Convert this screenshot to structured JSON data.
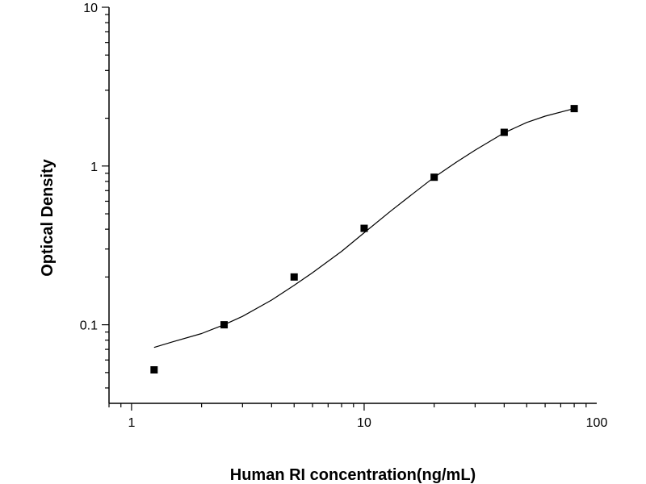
{
  "chart_data": {
    "type": "scatter",
    "title": "",
    "xlabel": "Human RI concentration(ng/mL)",
    "ylabel": "Optical Density",
    "x_scale": "log",
    "y_scale": "log",
    "xlim": [
      0.8,
      100
    ],
    "ylim": [
      0.032,
      10
    ],
    "grid": false,
    "legend": "none",
    "x_ticks": [
      {
        "value": 1,
        "label": "1"
      },
      {
        "value": 10,
        "label": "10"
      },
      {
        "value": 100,
        "label": "100"
      }
    ],
    "y_ticks": [
      {
        "value": 0.1,
        "label": "0.1"
      },
      {
        "value": 1,
        "label": "1"
      },
      {
        "value": 10,
        "label": "10"
      }
    ],
    "series": [
      {
        "marker": "square",
        "color": "#000000",
        "x": [
          1.25,
          2.5,
          5,
          10,
          20,
          40,
          80
        ],
        "y": [
          0.052,
          0.1,
          0.2,
          0.405,
          0.85,
          1.63,
          2.3
        ]
      }
    ],
    "fit_curve": {
      "color": "#000000",
      "x": [
        1.25,
        1.5,
        2,
        2.5,
        3,
        4,
        5,
        6,
        8,
        10,
        13,
        16,
        20,
        25,
        30,
        40,
        50,
        60,
        80
      ],
      "y": [
        0.072,
        0.078,
        0.088,
        0.1,
        0.113,
        0.143,
        0.177,
        0.213,
        0.29,
        0.38,
        0.52,
        0.66,
        0.85,
        1.06,
        1.26,
        1.62,
        1.88,
        2.06,
        2.3
      ]
    }
  }
}
